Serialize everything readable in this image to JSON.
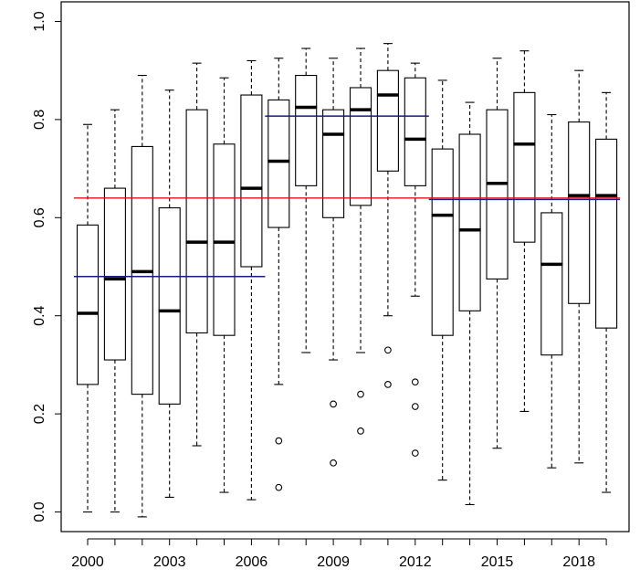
{
  "chart_data": {
    "type": "box",
    "title": "",
    "xlabel": "",
    "ylabel": "",
    "ylim": [
      -0.04,
      1.04
    ],
    "grid": false,
    "legend": false,
    "y_ticks": [
      "0.0",
      "0.2",
      "0.4",
      "0.6",
      "0.8",
      "1.0"
    ],
    "x_tick_labels": [
      {
        "year": 2000,
        "label": "2000"
      },
      {
        "year": 2003,
        "label": "2003"
      },
      {
        "year": 2006,
        "label": "2006"
      },
      {
        "year": 2009,
        "label": "2009"
      },
      {
        "year": 2012,
        "label": "2012"
      },
      {
        "year": 2015,
        "label": "2015"
      },
      {
        "year": 2018,
        "label": "2018"
      }
    ],
    "boxes": [
      {
        "year": 2000,
        "min": 0.0,
        "q1": 0.26,
        "median": 0.405,
        "q3": 0.585,
        "max": 0.79,
        "outliers": []
      },
      {
        "year": 2001,
        "min": 0.0,
        "q1": 0.31,
        "median": 0.475,
        "q3": 0.66,
        "max": 0.82,
        "outliers": []
      },
      {
        "year": 2002,
        "min": -0.01,
        "q1": 0.24,
        "median": 0.49,
        "q3": 0.745,
        "max": 0.89,
        "outliers": []
      },
      {
        "year": 2003,
        "min": 0.03,
        "q1": 0.22,
        "median": 0.41,
        "q3": 0.62,
        "max": 0.86,
        "outliers": []
      },
      {
        "year": 2004,
        "min": 0.135,
        "q1": 0.365,
        "median": 0.55,
        "q3": 0.82,
        "max": 0.915,
        "outliers": []
      },
      {
        "year": 2005,
        "min": 0.04,
        "q1": 0.36,
        "median": 0.55,
        "q3": 0.75,
        "max": 0.885,
        "outliers": []
      },
      {
        "year": 2006,
        "min": 0.025,
        "q1": 0.5,
        "median": 0.66,
        "q3": 0.85,
        "max": 0.92,
        "outliers": []
      },
      {
        "year": 2007,
        "min": 0.26,
        "q1": 0.58,
        "median": 0.715,
        "q3": 0.84,
        "max": 0.925,
        "outliers": [
          0.145,
          0.05
        ]
      },
      {
        "year": 2008,
        "min": 0.325,
        "q1": 0.665,
        "median": 0.825,
        "q3": 0.89,
        "max": 0.945,
        "outliers": []
      },
      {
        "year": 2009,
        "min": 0.31,
        "q1": 0.6,
        "median": 0.77,
        "q3": 0.82,
        "max": 0.925,
        "outliers": [
          0.22,
          0.1
        ]
      },
      {
        "year": 2010,
        "min": 0.325,
        "q1": 0.625,
        "median": 0.82,
        "q3": 0.865,
        "max": 0.945,
        "outliers": [
          0.24,
          0.165
        ]
      },
      {
        "year": 2011,
        "min": 0.4,
        "q1": 0.695,
        "median": 0.85,
        "q3": 0.9,
        "max": 0.955,
        "outliers": [
          0.33,
          0.26
        ]
      },
      {
        "year": 2012,
        "min": 0.44,
        "q1": 0.665,
        "median": 0.76,
        "q3": 0.885,
        "max": 0.915,
        "outliers": [
          0.265,
          0.215,
          0.12
        ]
      },
      {
        "year": 2013,
        "min": 0.065,
        "q1": 0.36,
        "median": 0.605,
        "q3": 0.74,
        "max": 0.88,
        "outliers": []
      },
      {
        "year": 2014,
        "min": 0.015,
        "q1": 0.41,
        "median": 0.575,
        "q3": 0.77,
        "max": 0.835,
        "outliers": []
      },
      {
        "year": 2015,
        "min": 0.13,
        "q1": 0.475,
        "median": 0.67,
        "q3": 0.82,
        "max": 0.925,
        "outliers": []
      },
      {
        "year": 2016,
        "min": 0.205,
        "q1": 0.55,
        "median": 0.75,
        "q3": 0.855,
        "max": 0.94,
        "outliers": []
      },
      {
        "year": 2017,
        "min": 0.09,
        "q1": 0.32,
        "median": 0.505,
        "q3": 0.61,
        "max": 0.81,
        "outliers": []
      },
      {
        "year": 2018,
        "min": 0.1,
        "q1": 0.425,
        "median": 0.645,
        "q3": 0.795,
        "max": 0.9,
        "outliers": []
      },
      {
        "year": 2019,
        "min": 0.04,
        "q1": 0.375,
        "median": 0.645,
        "q3": 0.76,
        "max": 0.855,
        "outliers": []
      }
    ],
    "reference_lines": [
      {
        "y": 0.64,
        "from_year": 2000,
        "to_year": 2019,
        "color": "#e01020",
        "role": "overall-mean"
      },
      {
        "y": 0.48,
        "from_year": 2000,
        "to_year": 2006,
        "color": "#1a1a8c",
        "role": "period-mean-1"
      },
      {
        "y": 0.807,
        "from_year": 2007,
        "to_year": 2012,
        "color": "#1a1a8c",
        "role": "period-mean-2"
      },
      {
        "y": 0.637,
        "from_year": 2013,
        "to_year": 2019,
        "color": "#1a1a8c",
        "role": "period-mean-3"
      }
    ],
    "colors": {
      "box_stroke": "#000000",
      "median": "#000000",
      "outlier_stroke": "#000000",
      "overall_line": "#e01020",
      "period_line": "#1a1a8c"
    }
  }
}
